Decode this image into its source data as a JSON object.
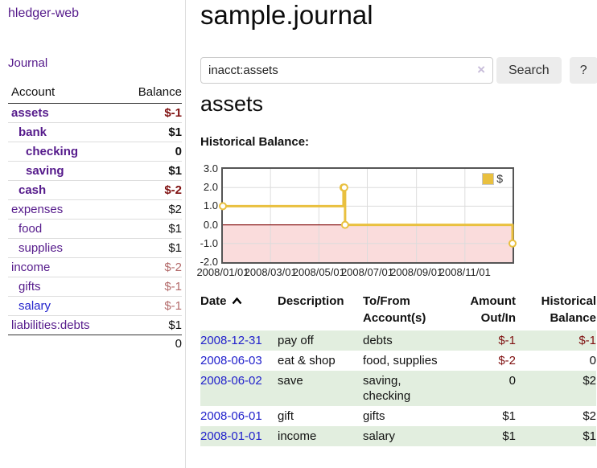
{
  "app": {
    "brand": "hledger-web",
    "nav_journal": "Journal"
  },
  "sidebar": {
    "header": {
      "account": "Account",
      "balance": "Balance"
    },
    "accounts": [
      {
        "name": "assets",
        "depth": 0,
        "balance": "$-1",
        "bold": true,
        "neg": "strong"
      },
      {
        "name": "bank",
        "depth": 1,
        "balance": "$1",
        "bold": true
      },
      {
        "name": "checking",
        "depth": 2,
        "balance": "0",
        "bold": true
      },
      {
        "name": "saving",
        "depth": 2,
        "balance": "$1",
        "bold": true
      },
      {
        "name": "cash",
        "depth": 1,
        "balance": "$-2",
        "bold": true,
        "neg": "strong"
      },
      {
        "name": "expenses",
        "depth": 0,
        "balance": "$2"
      },
      {
        "name": "food",
        "depth": 1,
        "balance": "$1"
      },
      {
        "name": "supplies",
        "depth": 1,
        "balance": "$1"
      },
      {
        "name": "income",
        "depth": 0,
        "balance": "$-2",
        "neg": "light"
      },
      {
        "name": "gifts",
        "depth": 1,
        "balance": "$-1",
        "neg": "light"
      },
      {
        "name": "salary",
        "depth": 1,
        "balance": "$-1",
        "neg": "light",
        "link_color": "blue"
      },
      {
        "name": "liabilities:debts",
        "depth": 0,
        "balance": "$1"
      }
    ],
    "total": "0"
  },
  "header": {
    "title": "sample.journal"
  },
  "search": {
    "value": "inacct:assets",
    "clear_icon": "×",
    "button": "Search",
    "help_button": "?"
  },
  "account_page": {
    "title": "assets",
    "chart_label": "Historical Balance:"
  },
  "chart_data": {
    "type": "line",
    "title": "Historical Balance:",
    "series": [
      {
        "name": "$",
        "color": "#e9c03f",
        "step": true,
        "points": [
          [
            "2008-01-01",
            1
          ],
          [
            "2008-06-01",
            2
          ],
          [
            "2008-06-02",
            2
          ],
          [
            "2008-06-03",
            0
          ],
          [
            "2008-12-31",
            -1
          ]
        ]
      }
    ],
    "x_range": [
      "2008-01-01",
      "2008-12-31"
    ],
    "x_ticks": [
      "2008/01/01",
      "2008/03/01",
      "2008/05/01",
      "2008/07/01",
      "2008/09/01",
      "2008/11/01"
    ],
    "y_ticks": [
      "3.0",
      "2.0",
      "1.0",
      "0.0",
      "-1.0",
      "-2.0"
    ],
    "ylim": [
      -2,
      3
    ],
    "grid": true,
    "legend_position": "top-right",
    "negative_region_color": "#fadcdc",
    "zero_line_color": "#8b1a1a",
    "grid_color": "#dcdcdc",
    "border_color": "#555555"
  },
  "register": {
    "columns": [
      {
        "line1": "Date",
        "sort": "asc",
        "align": "left"
      },
      {
        "line1": "Description",
        "align": "left"
      },
      {
        "line1": "To/From",
        "line2": "Account(s)",
        "align": "left"
      },
      {
        "line1": "Amount",
        "line2": "Out/In",
        "align": "right"
      },
      {
        "line1": "Historical",
        "line2": "Balance",
        "align": "right"
      }
    ],
    "rows": [
      {
        "date": "2008-12-31",
        "description": "pay off",
        "to_from": "debts",
        "amount": "$-1",
        "balance": "$-1"
      },
      {
        "date": "2008-06-03",
        "description": "eat & shop",
        "to_from": "food, supplies",
        "amount": "$-2",
        "balance": "0"
      },
      {
        "date": "2008-06-02",
        "description": "save",
        "to_from": "saving, checking",
        "amount": "0",
        "balance": "$2"
      },
      {
        "date": "2008-06-01",
        "description": "gift",
        "to_from": "gifts",
        "amount": "$1",
        "balance": "$2"
      },
      {
        "date": "2008-01-01",
        "description": "income",
        "to_from": "salary",
        "amount": "$1",
        "balance": "$1"
      }
    ]
  }
}
